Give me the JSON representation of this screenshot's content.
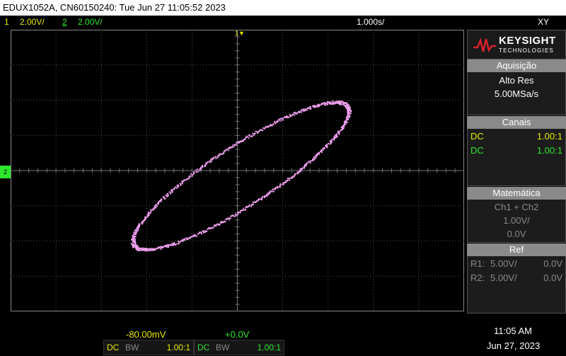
{
  "window": {
    "title": "EDUX1052A, CN60150240: Tue Jun 27 11:05:52 2023"
  },
  "status": {
    "ch1_number": "1",
    "ch1_scale": "2.00V/",
    "ch2_number": "2",
    "ch2_scale": "2.00V/",
    "timebase": "1.000s/",
    "mode": "XY"
  },
  "grid": {
    "top_marker": "1",
    "left_marker": "2"
  },
  "brand": {
    "name": "KEYSIGHT",
    "sub": "TECHNOLOGIES"
  },
  "acquisition": {
    "header": "Aquisição",
    "mode": "Alto Res",
    "rate": "5.00MSa/s"
  },
  "channels": {
    "header": "Canais",
    "rows": [
      {
        "coupling": "DC",
        "probe": "1.00:1"
      },
      {
        "coupling": "DC",
        "probe": "1.00:1"
      }
    ]
  },
  "math": {
    "header": "Matemática",
    "expr": "Ch1 + Ch2",
    "scale": "1.00V/",
    "offset": "0.0V"
  },
  "ref": {
    "header": "Ref",
    "rows": [
      {
        "label": "R1:",
        "scale": "5.00V/",
        "offset": "0.0V"
      },
      {
        "label": "R2:",
        "scale": "5.00V/",
        "offset": "0.0V"
      }
    ]
  },
  "bottom": {
    "ch1": {
      "offset": "-80.00mV",
      "coupling": "DC",
      "bw": "BW",
      "probe": "1.00:1"
    },
    "ch2": {
      "offset": "+0.0V",
      "coupling": "DC",
      "bw": "BW",
      "probe": "1.00:1"
    },
    "time": "11:05 AM",
    "date": "Jun 27, 2023"
  },
  "colors": {
    "ch1": "#e8e800",
    "ch2": "#2ee82e",
    "trace": "#f0a0f0",
    "grid": "#5a5a5a"
  }
}
